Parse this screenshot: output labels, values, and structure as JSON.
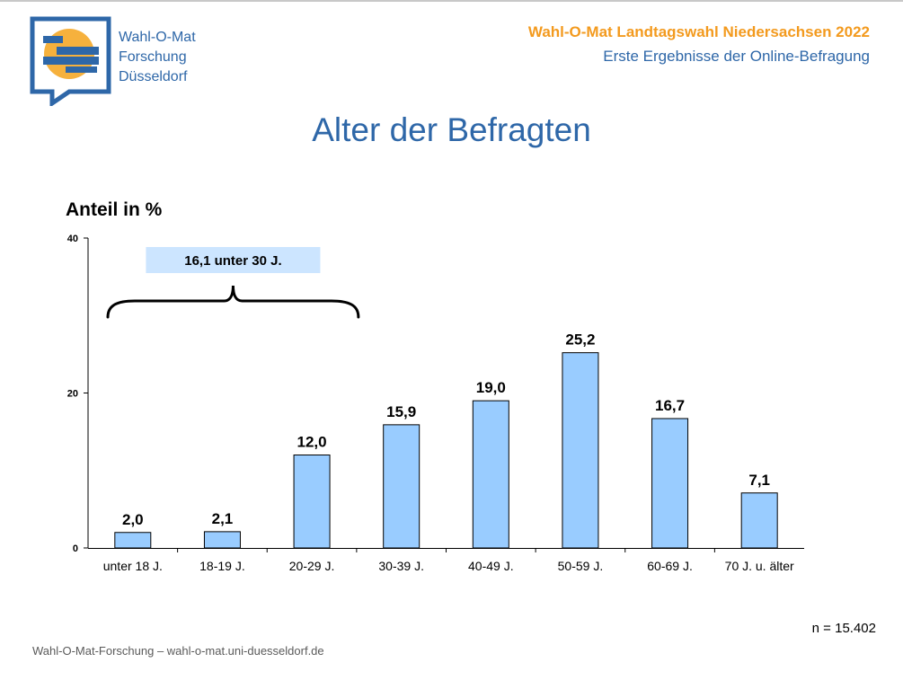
{
  "logo": {
    "lines": [
      "Wahl-O-Mat",
      "Forschung",
      "Düsseldorf"
    ],
    "colors": {
      "frame": "#2e67a8",
      "accent": "#f6b13d"
    }
  },
  "header": {
    "title": "Wahl-O-Mat Landtagswahl Niedersachsen 2022",
    "subtitle": "Erste Ergebnisse der Online-Befragung"
  },
  "footer": "Wahl-O-Mat-Forschung – wahl-o-mat.uni-duesseldorf.de",
  "chart_data": {
    "type": "bar",
    "title": "Alter der Befragten",
    "ylabel": "Anteil in %",
    "xlabel": "",
    "categories": [
      "unter 18 J.",
      "18-19 J.",
      "20-29 J.",
      "30-39 J.",
      "40-49 J.",
      "50-59 J.",
      "60-69 J.",
      "70 J. u. älter"
    ],
    "values": [
      2.0,
      2.1,
      12.0,
      15.9,
      19.0,
      25.2,
      16.7,
      7.1
    ],
    "value_labels": [
      "2,0",
      "2,1",
      "12,0",
      "15,9",
      "19,0",
      "25,2",
      "16,7",
      "7,1"
    ],
    "ylim": [
      0,
      40
    ],
    "yticks": [
      0,
      20,
      40
    ],
    "grid": false,
    "legend": "none",
    "bar_color": "#99ccff",
    "annotation": {
      "text": "16,1 unter 30 J.",
      "covers_categories": [
        "unter 18 J.",
        "18-19 J.",
        "20-29 J."
      ],
      "box_color": "#cce5ff"
    },
    "note": "n = 15.402"
  }
}
